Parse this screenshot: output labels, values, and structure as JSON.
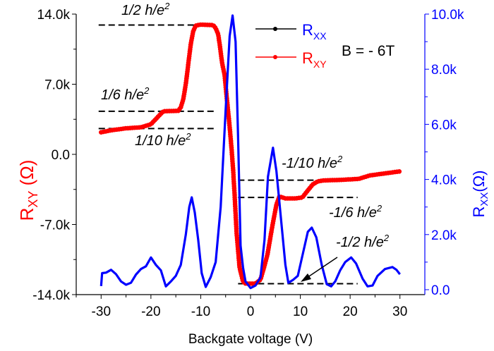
{
  "chart_data": {
    "type": "line",
    "xlabel": "Backgate voltage (V)",
    "ylabel_left": {
      "main": "R",
      "sub": "XY",
      "unit": " (Ω)"
    },
    "ylabel_right": {
      "main": "R",
      "sub": "XX",
      "unit": "(Ω)"
    },
    "xlim": [
      -35,
      35
    ],
    "ylim_left": [
      -14000,
      14000
    ],
    "ylim_right": [
      0,
      10000
    ],
    "x_ticks": [
      -30,
      -20,
      -10,
      0,
      10,
      20,
      30
    ],
    "x_tick_labels": [
      "-30",
      "-20",
      "-10",
      "0",
      "10",
      "20",
      "30"
    ],
    "y_left_ticks": [
      14000,
      7000,
      0,
      -7000,
      -14000
    ],
    "y_left_tick_labels": [
      "14.0k",
      "7.0k",
      "0.0",
      "-7.0k",
      "-14.0k"
    ],
    "y_right_ticks": [
      10000,
      8000,
      6000,
      4000,
      2000,
      0
    ],
    "y_right_tick_labels": [
      "10.0k",
      "8.0k",
      "6.0k",
      "4.0k",
      "2.0k",
      "0.0"
    ],
    "annotation_text": "B = - 6T",
    "legend": [
      {
        "main": "R",
        "sub": "XX",
        "text_color": "#0000ff",
        "line_color": "#000000"
      },
      {
        "main": "R",
        "sub": "XY",
        "text_color": "#ff0000",
        "line_color": "#ff0000"
      }
    ],
    "legend_position": "top-center",
    "series": [
      {
        "name": "RXY",
        "axis": "left",
        "color": "#ff0000",
        "markers": true,
        "points": [
          [
            -30,
            2200
          ],
          [
            -28,
            2400
          ],
          [
            -25,
            2600
          ],
          [
            -22,
            2700
          ],
          [
            -20,
            3000
          ],
          [
            -18.5,
            3800
          ],
          [
            -17.5,
            4300
          ],
          [
            -14.5,
            4350
          ],
          [
            -14,
            4700
          ],
          [
            -13.5,
            5500
          ],
          [
            -13,
            7000
          ],
          [
            -12.5,
            9000
          ],
          [
            -12,
            11000
          ],
          [
            -11.5,
            12300
          ],
          [
            -11,
            12850
          ],
          [
            -10,
            12950
          ],
          [
            -7.5,
            12900
          ],
          [
            -7,
            12600
          ],
          [
            -6.5,
            12000
          ],
          [
            -6.2,
            11000
          ],
          [
            -5.7,
            9100
          ],
          [
            -5.2,
            7900
          ],
          [
            -4.8,
            5800
          ],
          [
            -4.2,
            2800
          ],
          [
            -3.8,
            500
          ],
          [
            -3.5,
            -1500
          ],
          [
            -3.2,
            -4000
          ],
          [
            -2.8,
            -7800
          ],
          [
            -2.2,
            -11300
          ],
          [
            -1.5,
            -12700
          ],
          [
            -1,
            -12900
          ],
          [
            1,
            -12900
          ],
          [
            2,
            -12500
          ],
          [
            2.7,
            -11300
          ],
          [
            3.4,
            -10000
          ],
          [
            4.4,
            -7100
          ],
          [
            5.2,
            -5000
          ],
          [
            5.8,
            -4200
          ],
          [
            7,
            -4400
          ],
          [
            9,
            -4400
          ],
          [
            10.4,
            -4300
          ],
          [
            11.5,
            -3600
          ],
          [
            12.5,
            -3000
          ],
          [
            13.5,
            -2700
          ],
          [
            14.7,
            -2600
          ],
          [
            18,
            -2550
          ],
          [
            21.7,
            -2450
          ],
          [
            24,
            -2100
          ],
          [
            27,
            -1900
          ],
          [
            30,
            -1700
          ]
        ]
      },
      {
        "name": "RXX",
        "axis": "right",
        "color": "#0000ff",
        "markers": false,
        "points": [
          [
            -30,
            130
          ],
          [
            -29.8,
            600
          ],
          [
            -29,
            620
          ],
          [
            -28,
            720
          ],
          [
            -27,
            560
          ],
          [
            -26,
            300
          ],
          [
            -25,
            180
          ],
          [
            -24,
            250
          ],
          [
            -23,
            550
          ],
          [
            -22,
            750
          ],
          [
            -21,
            850
          ],
          [
            -20,
            1170
          ],
          [
            -19,
            900
          ],
          [
            -18,
            700
          ],
          [
            -17,
            120
          ],
          [
            -16,
            300
          ],
          [
            -15,
            500
          ],
          [
            -14,
            900
          ],
          [
            -13,
            2000
          ],
          [
            -12.3,
            3000
          ],
          [
            -11.8,
            3350
          ],
          [
            -11.2,
            2800
          ],
          [
            -10.5,
            1800
          ],
          [
            -9.8,
            600
          ],
          [
            -9,
            100
          ],
          [
            -8,
            450
          ],
          [
            -7,
            1000
          ],
          [
            -6,
            3000
          ],
          [
            -5,
            6500
          ],
          [
            -4.2,
            9200
          ],
          [
            -3.6,
            9950
          ],
          [
            -3,
            9000
          ],
          [
            -2.5,
            5500
          ],
          [
            -2,
            1600
          ],
          [
            -1.5,
            800
          ],
          [
            -1,
            300
          ],
          [
            0,
            60
          ],
          [
            1,
            150
          ],
          [
            2,
            450
          ],
          [
            2.8,
            1800
          ],
          [
            3.5,
            4100
          ],
          [
            4.5,
            5150
          ],
          [
            5.2,
            4300
          ],
          [
            6,
            2800
          ],
          [
            7,
            900
          ],
          [
            7.6,
            250
          ],
          [
            8.5,
            350
          ],
          [
            9.5,
            500
          ],
          [
            10.5,
            1300
          ],
          [
            11.5,
            2100
          ],
          [
            12.3,
            2250
          ],
          [
            13.2,
            1900
          ],
          [
            14.3,
            900
          ],
          [
            15.3,
            200
          ],
          [
            16.2,
            120
          ],
          [
            17,
            300
          ],
          [
            18,
            700
          ],
          [
            19,
            1000
          ],
          [
            20.2,
            1170
          ],
          [
            21.2,
            950
          ],
          [
            22.5,
            400
          ],
          [
            23.5,
            120
          ],
          [
            24.5,
            150
          ],
          [
            25.5,
            500
          ],
          [
            27,
            750
          ],
          [
            28.5,
            820
          ],
          [
            29.3,
            720
          ],
          [
            30,
            560
          ]
        ]
      }
    ],
    "reference_lines": [
      {
        "label": "1/2 h/e²",
        "main": "1/2 h/e",
        "sup": "2",
        "value": 12906,
        "x_range": [
          -30.5,
          -7
        ]
      },
      {
        "label": "1/6 h/e²",
        "main": "1/6 h/e",
        "sup": "2",
        "value": 4302,
        "x_range": [
          -30.5,
          -7
        ]
      },
      {
        "label": "1/10 h/e²",
        "main": "1/10 h/e",
        "sup": "2",
        "value": 2581,
        "x_range": [
          -30.5,
          -7
        ]
      },
      {
        "label": "-1/10 h/e²",
        "main": "-1/10 h/e",
        "sup": "2",
        "value": -2581,
        "x_range": [
          -2.5,
          21.5
        ]
      },
      {
        "label": "-1/6 h/e²",
        "main": "-1/6 h/e",
        "sup": "2",
        "value": -4302,
        "x_range": [
          -2.5,
          21.5
        ]
      },
      {
        "label": "-1/2 h/e²",
        "main": "-1/2 h/e",
        "sup": "2",
        "value": -12906,
        "x_range": [
          -2.5,
          21.5
        ]
      }
    ]
  }
}
